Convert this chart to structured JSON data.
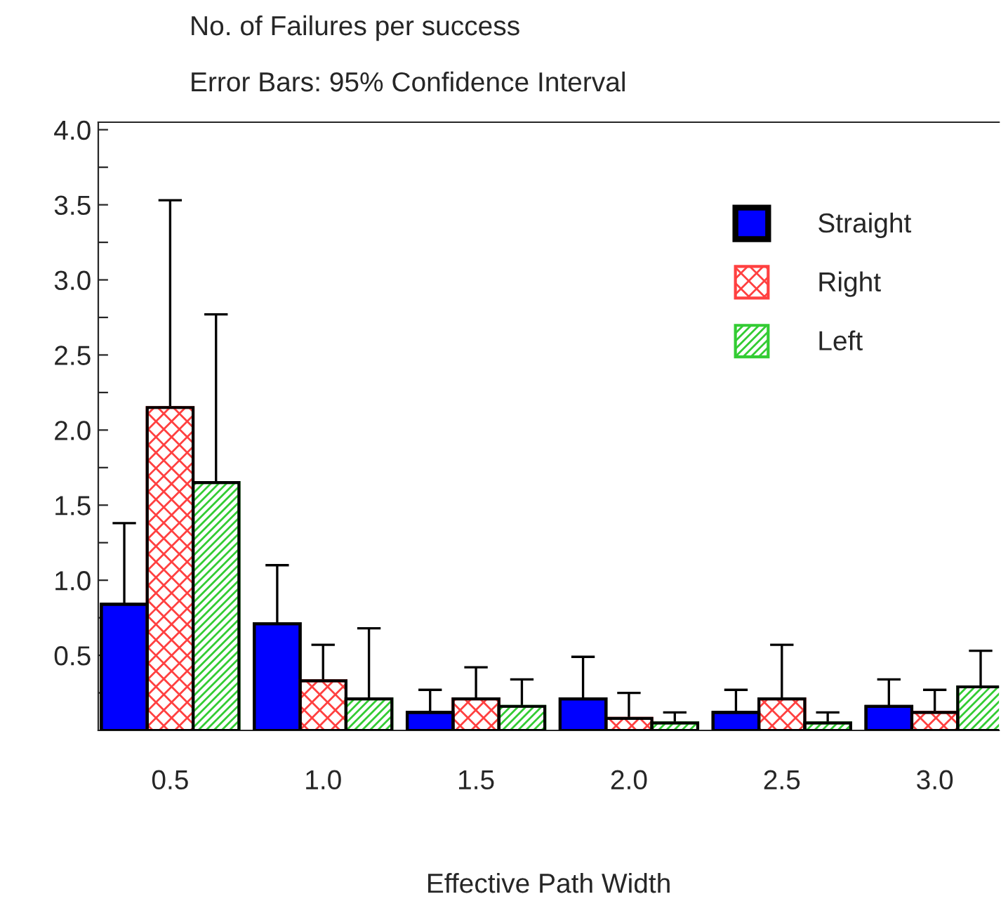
{
  "chart_data": {
    "type": "bar",
    "title": "No. of Failures per success",
    "subtitle": "Error Bars: 95% Confidence Interval",
    "xlabel": "Effective Path Width",
    "categories": [
      "0.5",
      "1.0",
      "1.5",
      "2.0",
      "2.5",
      "3.0"
    ],
    "series": [
      {
        "name": "Straight",
        "color": "#0000ff",
        "values": [
          0.84,
          0.71,
          0.12,
          0.21,
          0.12,
          0.16
        ],
        "errors": [
          [
            0.84,
            1.38
          ],
          [
            0.71,
            1.1
          ],
          [
            0.12,
            0.27
          ],
          [
            0.21,
            0.49
          ],
          [
            0.12,
            0.27
          ],
          [
            0.16,
            0.34
          ]
        ]
      },
      {
        "name": "Right",
        "color": "#ff4040",
        "values": [
          2.15,
          0.33,
          0.21,
          0.08,
          0.21,
          0.12
        ],
        "errors": [
          [
            2.15,
            3.53
          ],
          [
            0.33,
            0.57
          ],
          [
            0.21,
            0.42
          ],
          [
            0.08,
            0.25
          ],
          [
            0.21,
            0.57
          ],
          [
            0.12,
            0.27
          ]
        ]
      },
      {
        "name": "Left",
        "color": "#33cc33",
        "values": [
          1.65,
          0.21,
          0.16,
          0.05,
          0.05,
          0.29
        ],
        "errors": [
          [
            1.65,
            2.77
          ],
          [
            0.21,
            0.68
          ],
          [
            0.16,
            0.34
          ],
          [
            0.05,
            0.12
          ],
          [
            0.05,
            0.12
          ],
          [
            0.29,
            0.53
          ]
        ]
      }
    ],
    "ylim": [
      0,
      4.05
    ],
    "yticks": [
      {
        "value": 0.5,
        "label": "0.5"
      },
      {
        "value": 1,
        "label": "1.0"
      },
      {
        "value": 1.5,
        "label": "1.5"
      },
      {
        "value": 2,
        "label": "2.0"
      },
      {
        "value": 2.5,
        "label": "2.5"
      },
      {
        "value": 3,
        "label": "3.0"
      },
      {
        "value": 3.5,
        "label": "3.5"
      },
      {
        "value": 4,
        "label": "4.0"
      },
      {
        "value": 0.25,
        "label": null
      },
      {
        "value": 0.75,
        "label": null
      },
      {
        "value": 1.25,
        "label": null
      },
      {
        "value": 1.75,
        "label": null
      },
      {
        "value": 2.25,
        "label": null
      },
      {
        "value": 2.75,
        "label": null
      },
      {
        "value": 3.25,
        "label": null
      },
      {
        "value": 3.75,
        "label": null
      }
    ],
    "grid": false,
    "legend": "top right"
  }
}
